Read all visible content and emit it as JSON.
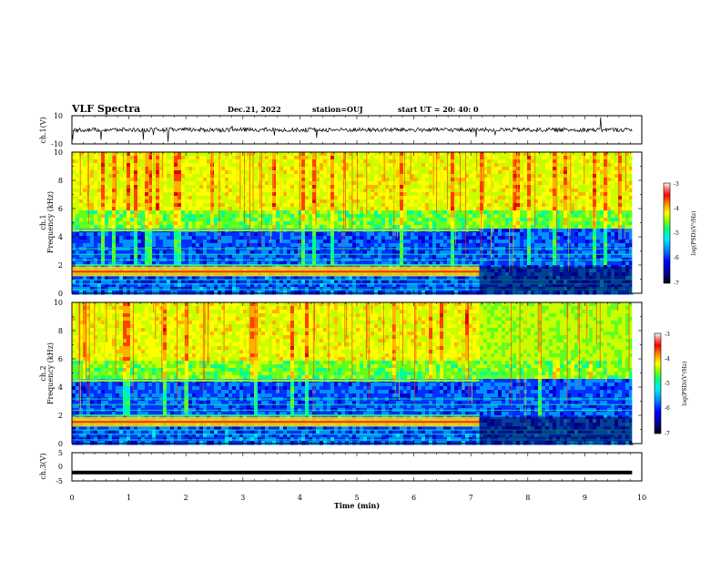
{
  "header": {
    "title": "VLF Spectra",
    "date": "Dec.21, 2022",
    "station": "station=OUJ",
    "start": "start  UT =   20: 40: 0"
  },
  "chart_data": [
    {
      "type": "line",
      "panel": "ch1_waveform",
      "ylabel": "ch.1(V)",
      "ylim": [
        -10,
        10
      ],
      "yticks": [
        "10",
        "-10"
      ],
      "xlim": [
        0,
        10
      ],
      "baseline": 0,
      "trace_color": "#000000"
    },
    {
      "type": "heatmap",
      "panel": "ch1_spectrogram",
      "ylabel": "ch.1\nFrequency (kHz)",
      "ylim": [
        0,
        10
      ],
      "yticks": [
        "0",
        "2",
        "4",
        "6",
        "8",
        "10"
      ],
      "xlim": [
        0,
        10
      ],
      "data_end_min": 9.83,
      "features": {
        "hum_band_khz": [
          1.2,
          1.9
        ],
        "hum_band_end_min": 7.15,
        "line_4_5khz_end_min": 7.15
      },
      "colorbar": {
        "label": "log(PSD)(V²/Hz)",
        "ticks": [
          "-3",
          "-4",
          "-5",
          "-6",
          "-7"
        ],
        "range": [
          -7,
          -3
        ]
      }
    },
    {
      "type": "heatmap",
      "panel": "ch2_spectrogram",
      "ylabel": "ch.2\nFrequency (kHz)",
      "ylim": [
        0,
        10
      ],
      "yticks": [
        "0",
        "2",
        "4",
        "6",
        "8",
        "10"
      ],
      "xlim": [
        0,
        10
      ],
      "data_end_min": 9.83,
      "features": {
        "hum_band_khz": [
          1.2,
          1.9
        ],
        "hum_band_end_min": 7.15,
        "line_4_5khz_end_min": 7.15
      },
      "colorbar": {
        "label": "log(PSD)(V²/Hz)",
        "ticks": [
          "-3",
          "-4",
          "-5",
          "-6",
          "-7"
        ],
        "range": [
          -7,
          -3
        ]
      }
    },
    {
      "type": "line",
      "panel": "ch3_waveform",
      "ylabel": "ch.3(V)",
      "ylim": [
        -5,
        5
      ],
      "yticks": [
        "5",
        "0",
        "-5"
      ],
      "xlim": [
        0,
        10
      ],
      "constant_value": -2,
      "trace_color": "#000000"
    }
  ],
  "xaxis": {
    "label": "Time (min)",
    "ticks": [
      "0",
      "1",
      "2",
      "3",
      "4",
      "5",
      "6",
      "7",
      "8",
      "9",
      "10"
    ]
  },
  "colors": {
    "colormap": [
      "#000080",
      "#0000ff",
      "#0080ff",
      "#00e0ff",
      "#00ff80",
      "#80ff00",
      "#ffff00",
      "#ff8000",
      "#ff0000",
      "#ff6060",
      "#ffffff"
    ]
  }
}
